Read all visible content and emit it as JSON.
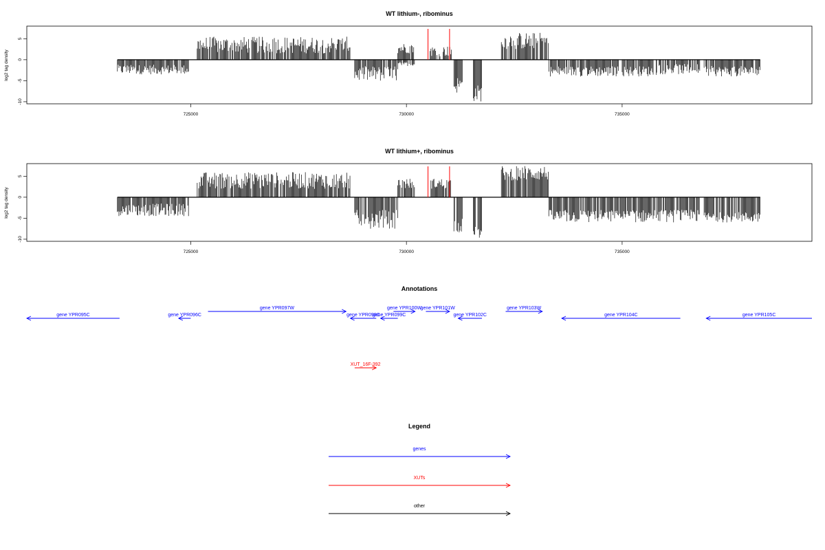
{
  "chart_data": [
    {
      "type": "bar",
      "title": "WT lithium-, ribominus",
      "ylabel": "log2 tag density",
      "xlabel": "",
      "xlim": [
        721200,
        739400
      ],
      "ylim": [
        -10.5,
        8
      ],
      "xticks": [
        725000,
        730000,
        735000
      ],
      "yticks": [
        -10,
        -5,
        0,
        5
      ],
      "grid": false,
      "baseline_range": [
        723300,
        738200
      ],
      "red_markers": [
        730500,
        731000
      ],
      "blocks": [
        {
          "start": 723300,
          "end": 724950,
          "min": -3.5,
          "max": -1.2
        },
        {
          "start": 725150,
          "end": 728700,
          "min": 1.5,
          "max": 5.5
        },
        {
          "start": 728800,
          "end": 729800,
          "min": -5.2,
          "max": -1.5
        },
        {
          "start": 729800,
          "end": 730200,
          "min": -1.5,
          "max": -0.5
        },
        {
          "start": 729800,
          "end": 730200,
          "min": 1.5,
          "max": 4.0
        },
        {
          "start": 730550,
          "end": 731050,
          "min": 0.8,
          "max": 3.3
        },
        {
          "start": 731100,
          "end": 731300,
          "min": -8.0,
          "max": -4.0
        },
        {
          "start": 731550,
          "end": 731750,
          "min": -10.0,
          "max": -6.0
        },
        {
          "start": 732200,
          "end": 733300,
          "min": 2.5,
          "max": 6.5
        },
        {
          "start": 733300,
          "end": 735800,
          "min": -4.0,
          "max": -1.5
        },
        {
          "start": 735800,
          "end": 736800,
          "min": -3.5,
          "max": -1.0
        },
        {
          "start": 736900,
          "end": 738200,
          "min": -4.0,
          "max": -1.5
        }
      ]
    },
    {
      "type": "bar",
      "title": "WT lithium+, ribominus",
      "ylabel": "log2 tag density",
      "xlabel": "",
      "xlim": [
        721200,
        739400
      ],
      "ylim": [
        -10.5,
        8
      ],
      "xticks": [
        725000,
        730000,
        735000
      ],
      "yticks": [
        -10,
        -5,
        0,
        5
      ],
      "grid": false,
      "baseline_range": [
        723300,
        738200
      ],
      "red_markers": [
        730500,
        731000
      ],
      "blocks": [
        {
          "start": 723300,
          "end": 724950,
          "min": -4.5,
          "max": -1.5
        },
        {
          "start": 725150,
          "end": 728700,
          "min": 2.0,
          "max": 6.0
        },
        {
          "start": 728800,
          "end": 729800,
          "min": -7.5,
          "max": -3.0
        },
        {
          "start": 729800,
          "end": 730200,
          "min": 2.0,
          "max": 4.5
        },
        {
          "start": 730550,
          "end": 731050,
          "min": 2.0,
          "max": 4.5
        },
        {
          "start": 731100,
          "end": 731300,
          "min": -8.5,
          "max": -5.0
        },
        {
          "start": 731550,
          "end": 731750,
          "min": -10.0,
          "max": -7.0
        },
        {
          "start": 732200,
          "end": 733300,
          "min": 4.0,
          "max": 7.5
        },
        {
          "start": 733300,
          "end": 736800,
          "min": -6.0,
          "max": -3.0
        },
        {
          "start": 736900,
          "end": 738200,
          "min": -6.0,
          "max": -3.5
        }
      ]
    }
  ],
  "annotations": {
    "title": "Annotations",
    "colors": {
      "gene": "#0000ff",
      "xut": "#ff0000",
      "other": "#000000"
    },
    "features": [
      {
        "label": "gene YPR095C",
        "type": "gene",
        "start": 721200,
        "end": 723350,
        "strand": "-",
        "row": 1
      },
      {
        "label": "gene YPR096C",
        "type": "gene",
        "start": 724720,
        "end": 725000,
        "strand": "-",
        "row": 1
      },
      {
        "label": "gene YPR097W",
        "type": "gene",
        "start": 725400,
        "end": 728600,
        "strand": "+",
        "row": 0
      },
      {
        "label": "gene YPR098C",
        "type": "gene",
        "start": 728700,
        "end": 729300,
        "strand": "-",
        "row": 1
      },
      {
        "label": "gene YPR099C",
        "type": "gene",
        "start": 729400,
        "end": 729800,
        "strand": "-",
        "row": 1
      },
      {
        "label": "gene YPR100W",
        "type": "gene",
        "start": 729700,
        "end": 730200,
        "strand": "+",
        "row": 0
      },
      {
        "label": "gene YPR101W",
        "type": "gene",
        "start": 730450,
        "end": 731000,
        "strand": "+",
        "row": 0
      },
      {
        "label": "gene YPR102C",
        "type": "gene",
        "start": 731200,
        "end": 731750,
        "strand": "-",
        "row": 1
      },
      {
        "label": "gene YPR103W",
        "type": "gene",
        "start": 732300,
        "end": 733150,
        "strand": "+",
        "row": 0
      },
      {
        "label": "gene YPR104C",
        "type": "gene",
        "start": 733600,
        "end": 736350,
        "strand": "-",
        "row": 1
      },
      {
        "label": "gene YPR105C",
        "type": "gene",
        "start": 736950,
        "end": 739400,
        "strand": "-",
        "row": 1
      },
      {
        "label": "XUT_16F-392",
        "type": "xut",
        "start": 728800,
        "end": 729300,
        "strand": "+",
        "row": 2
      }
    ]
  },
  "legend": {
    "title": "Legend",
    "items": [
      {
        "label": "genes",
        "color": "#0000ff"
      },
      {
        "label": "XUTs",
        "color": "#ff0000"
      },
      {
        "label": "other",
        "color": "#000000"
      }
    ]
  }
}
